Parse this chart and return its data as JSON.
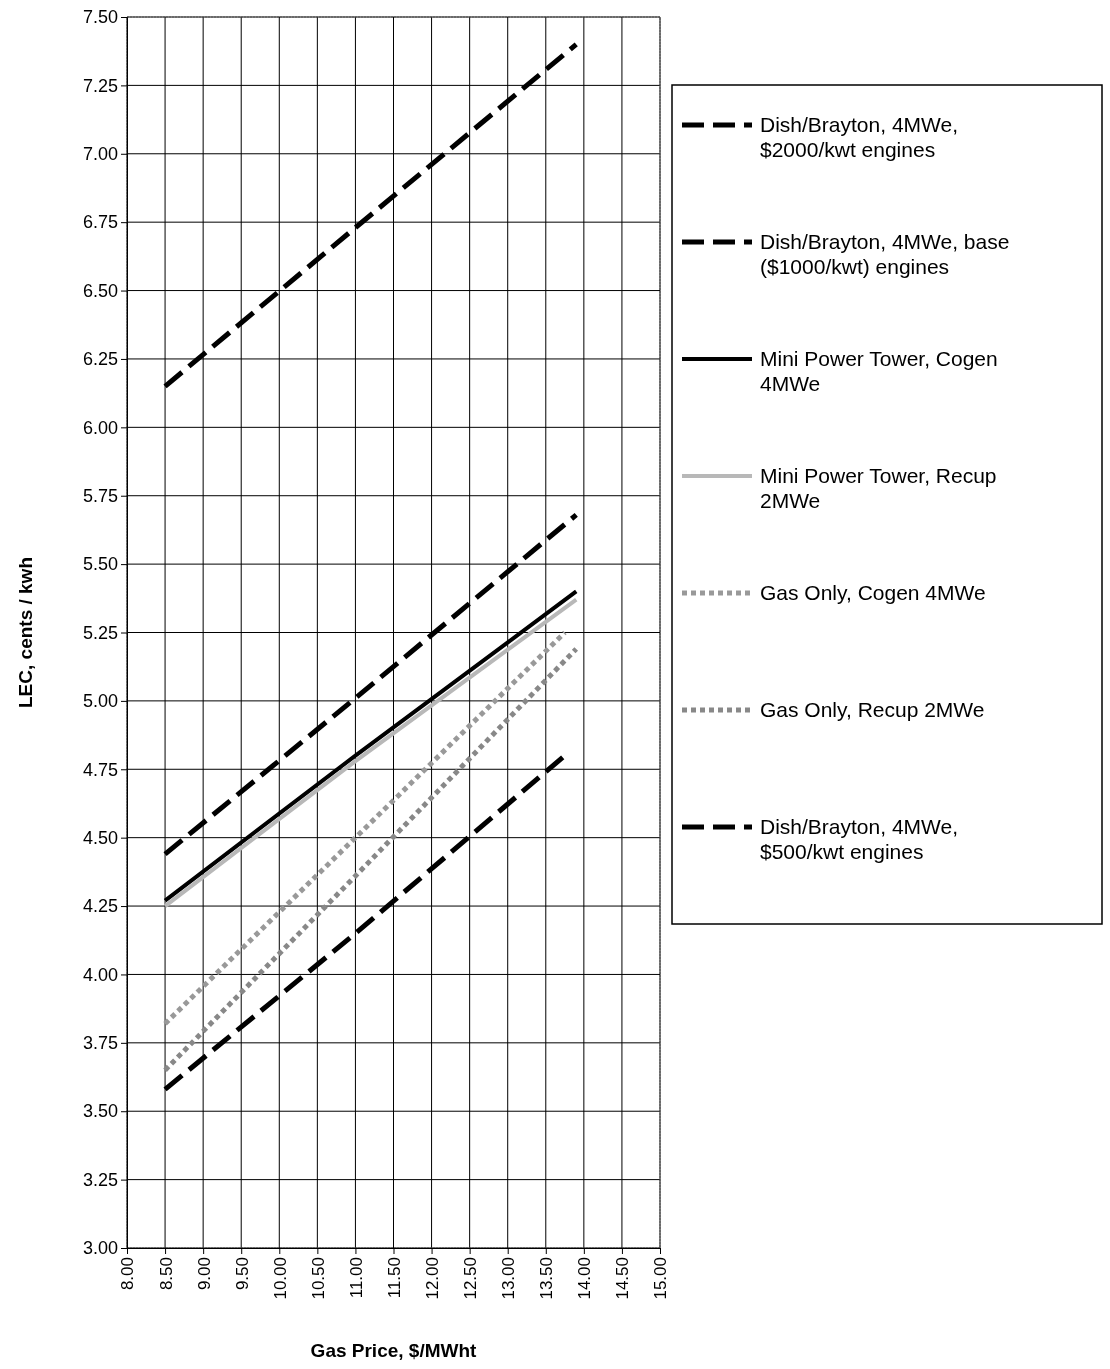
{
  "chart_data": {
    "type": "line",
    "xlabel": "Gas Price, $/MWht",
    "ylabel": "LEC, cents / kwh",
    "xlim": [
      8,
      15
    ],
    "xticks": [
      {
        "value": 8,
        "label": "8.00"
      },
      {
        "value": 8.5,
        "label": "8.50"
      },
      {
        "value": 9,
        "label": "9.00"
      },
      {
        "value": 9.5,
        "label": "9.50"
      },
      {
        "value": 10,
        "label": "10.00"
      },
      {
        "value": 10.5,
        "label": "10.50"
      },
      {
        "value": 11,
        "label": "11.00"
      },
      {
        "value": 11.5,
        "label": "11.50"
      },
      {
        "value": 12,
        "label": "12.00"
      },
      {
        "value": 12.5,
        "label": "12.50"
      },
      {
        "value": 13,
        "label": "13.00"
      },
      {
        "value": 13.5,
        "label": "13.50"
      },
      {
        "value": 14,
        "label": "14.00"
      },
      {
        "value": 14.5,
        "label": "14.50"
      },
      {
        "value": 15,
        "label": "15.00"
      }
    ],
    "ylim": [
      3,
      7.5
    ],
    "yticks": [
      {
        "value": 3,
        "label": "3.00"
      },
      {
        "value": 3.25,
        "label": "3.25"
      },
      {
        "value": 3.5,
        "label": "3.50"
      },
      {
        "value": 3.75,
        "label": "3.75"
      },
      {
        "value": 4,
        "label": "4.00"
      },
      {
        "value": 4.25,
        "label": "4.25"
      },
      {
        "value": 4.5,
        "label": "4.50"
      },
      {
        "value": 4.75,
        "label": "4.75"
      },
      {
        "value": 5,
        "label": "5.00"
      },
      {
        "value": 5.25,
        "label": "5.25"
      },
      {
        "value": 5.5,
        "label": "5.50"
      },
      {
        "value": 5.75,
        "label": "5.75"
      },
      {
        "value": 6,
        "label": "6.00"
      },
      {
        "value": 6.25,
        "label": "6.25"
      },
      {
        "value": 6.5,
        "label": "6.50"
      },
      {
        "value": 6.75,
        "label": "6.75"
      },
      {
        "value": 7,
        "label": "7.00"
      },
      {
        "value": 7.25,
        "label": "7.25"
      },
      {
        "value": 7.5,
        "label": "7.50"
      }
    ],
    "grid": true,
    "legend": "right",
    "marker": "none",
    "series": [
      {
        "name": "Dish/Brayton, 4MWe, $2000/kwt engines",
        "color": "#000000",
        "line_style": "dashed",
        "x": [
          8.5,
          11,
          13.9
        ],
        "values": [
          6.15,
          6.73,
          7.4
        ]
      },
      {
        "name": "Dish/Brayton, 4MWe, base ($1000/kwt) engines",
        "color": "#000000",
        "line_style": "dashed",
        "x": [
          8.5,
          11,
          13.9
        ],
        "values": [
          4.44,
          5.01,
          5.68
        ]
      },
      {
        "name": "Mini Power Tower, Cogen 4MWe",
        "color": "#000000",
        "line_style": "solid",
        "x": [
          8.5,
          11,
          13.9
        ],
        "values": [
          4.27,
          4.8,
          5.4
        ]
      },
      {
        "name": "Mini Power Tower, Recup 2MWe",
        "color": "#b8b8b8",
        "line_style": "solid",
        "x": [
          8.5,
          11,
          13.9
        ],
        "values": [
          4.25,
          4.78,
          5.37
        ]
      },
      {
        "name": "Gas Only, Cogen 4MWe",
        "color": "#999999",
        "line_style": "dotted",
        "x": [
          8.5,
          11,
          13.75
        ],
        "values": [
          3.82,
          4.5,
          5.25
        ]
      },
      {
        "name": "Gas Only, Recup 2MWe",
        "color": "#888888",
        "line_style": "dotted",
        "x": [
          8.5,
          11,
          13.9
        ],
        "values": [
          3.65,
          4.36,
          5.19
        ]
      },
      {
        "name": "Dish/Brayton, 4MWe, $500/kwt engines",
        "color": "#000000",
        "line_style": "dashed",
        "x": [
          8.5,
          11,
          13.75
        ],
        "values": [
          3.58,
          4.15,
          4.8
        ]
      }
    ]
  }
}
